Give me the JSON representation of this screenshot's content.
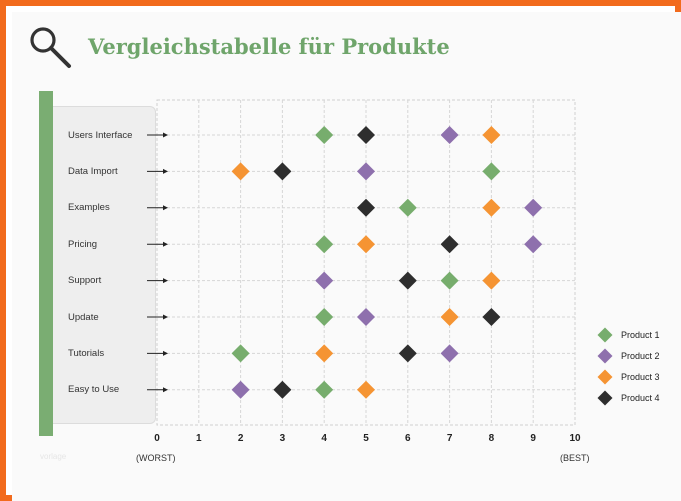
{
  "title": "Vergleichstabelle für Produkte",
  "footnote": "vorlage",
  "colors": {
    "frame": "#f26b1d",
    "title": "#6fa56b",
    "accent_bar": "#7aad72"
  },
  "chart_data": {
    "type": "scatter",
    "categories": [
      "Users Interface",
      "Data Import",
      "Examples",
      "Pricing",
      "Support",
      "Update",
      "Tutorials",
      "Easy to Use"
    ],
    "xlim": [
      0,
      10
    ],
    "xticks": [
      0,
      1,
      2,
      3,
      4,
      5,
      6,
      7,
      8,
      9,
      10
    ],
    "worst_label": "(WORST)",
    "best_label": "(BEST)",
    "grid": true,
    "legend_position": "right",
    "series": [
      {
        "name": "Product 1",
        "color": "#77ad6d",
        "values": [
          4,
          8,
          6,
          4,
          7,
          4,
          2,
          4
        ]
      },
      {
        "name": "Product 2",
        "color": "#8e70ad",
        "values": [
          7,
          5,
          9,
          9,
          4,
          5,
          7,
          2
        ]
      },
      {
        "name": "Product 3",
        "color": "#f59433",
        "values": [
          8,
          2,
          8,
          5,
          8,
          7,
          4,
          5
        ]
      },
      {
        "name": "Product 4",
        "color": "#2e2e2e",
        "values": [
          5,
          3,
          5,
          7,
          6,
          8,
          6,
          3
        ]
      }
    ]
  }
}
